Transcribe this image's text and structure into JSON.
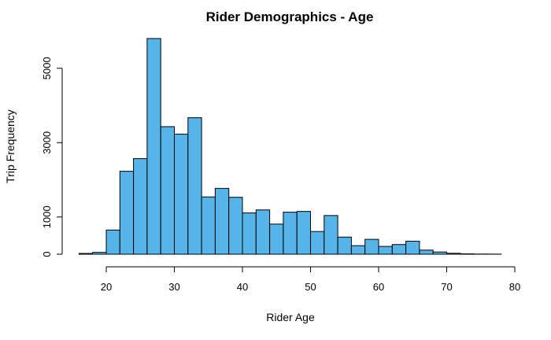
{
  "chart_data": {
    "type": "bar",
    "title": "Rider Demographics - Age",
    "xlabel": "Rider Age",
    "ylabel": "Trip Frequency",
    "bin_width": 2,
    "bins": [
      {
        "x0": 16,
        "x1": 18,
        "count": 20
      },
      {
        "x0": 18,
        "x1": 20,
        "count": 50
      },
      {
        "x0": 20,
        "x1": 22,
        "count": 650
      },
      {
        "x0": 22,
        "x1": 24,
        "count": 2230
      },
      {
        "x0": 24,
        "x1": 26,
        "count": 2570
      },
      {
        "x0": 26,
        "x1": 28,
        "count": 5800
      },
      {
        "x0": 28,
        "x1": 30,
        "count": 3430
      },
      {
        "x0": 30,
        "x1": 32,
        "count": 3230
      },
      {
        "x0": 32,
        "x1": 34,
        "count": 3670
      },
      {
        "x0": 34,
        "x1": 36,
        "count": 1540
      },
      {
        "x0": 36,
        "x1": 38,
        "count": 1770
      },
      {
        "x0": 38,
        "x1": 40,
        "count": 1530
      },
      {
        "x0": 40,
        "x1": 42,
        "count": 1110
      },
      {
        "x0": 42,
        "x1": 44,
        "count": 1190
      },
      {
        "x0": 44,
        "x1": 46,
        "count": 810
      },
      {
        "x0": 46,
        "x1": 48,
        "count": 1130
      },
      {
        "x0": 48,
        "x1": 50,
        "count": 1150
      },
      {
        "x0": 50,
        "x1": 52,
        "count": 610
      },
      {
        "x0": 52,
        "x1": 54,
        "count": 1040
      },
      {
        "x0": 54,
        "x1": 56,
        "count": 460
      },
      {
        "x0": 56,
        "x1": 58,
        "count": 230
      },
      {
        "x0": 58,
        "x1": 60,
        "count": 400
      },
      {
        "x0": 60,
        "x1": 62,
        "count": 210
      },
      {
        "x0": 62,
        "x1": 64,
        "count": 260
      },
      {
        "x0": 64,
        "x1": 66,
        "count": 350
      },
      {
        "x0": 66,
        "x1": 68,
        "count": 110
      },
      {
        "x0": 68,
        "x1": 70,
        "count": 60
      },
      {
        "x0": 70,
        "x1": 72,
        "count": 25
      },
      {
        "x0": 72,
        "x1": 74,
        "count": 10
      },
      {
        "x0": 74,
        "x1": 76,
        "count": 5
      },
      {
        "x0": 76,
        "x1": 78,
        "count": 3
      }
    ],
    "xlim": [
      16,
      80
    ],
    "ylim": [
      0,
      5800
    ],
    "x_ticks": [
      20,
      30,
      40,
      50,
      60,
      70,
      80
    ],
    "y_ticks": [
      0,
      1000,
      3000,
      5000
    ],
    "x_tick_labels": [
      "20",
      "30",
      "40",
      "50",
      "60",
      "70",
      "80"
    ],
    "y_tick_labels": [
      "0",
      "1000",
      "3000",
      "5000"
    ],
    "bar_color": "#56B4E9",
    "grid": false,
    "legend": "none"
  }
}
